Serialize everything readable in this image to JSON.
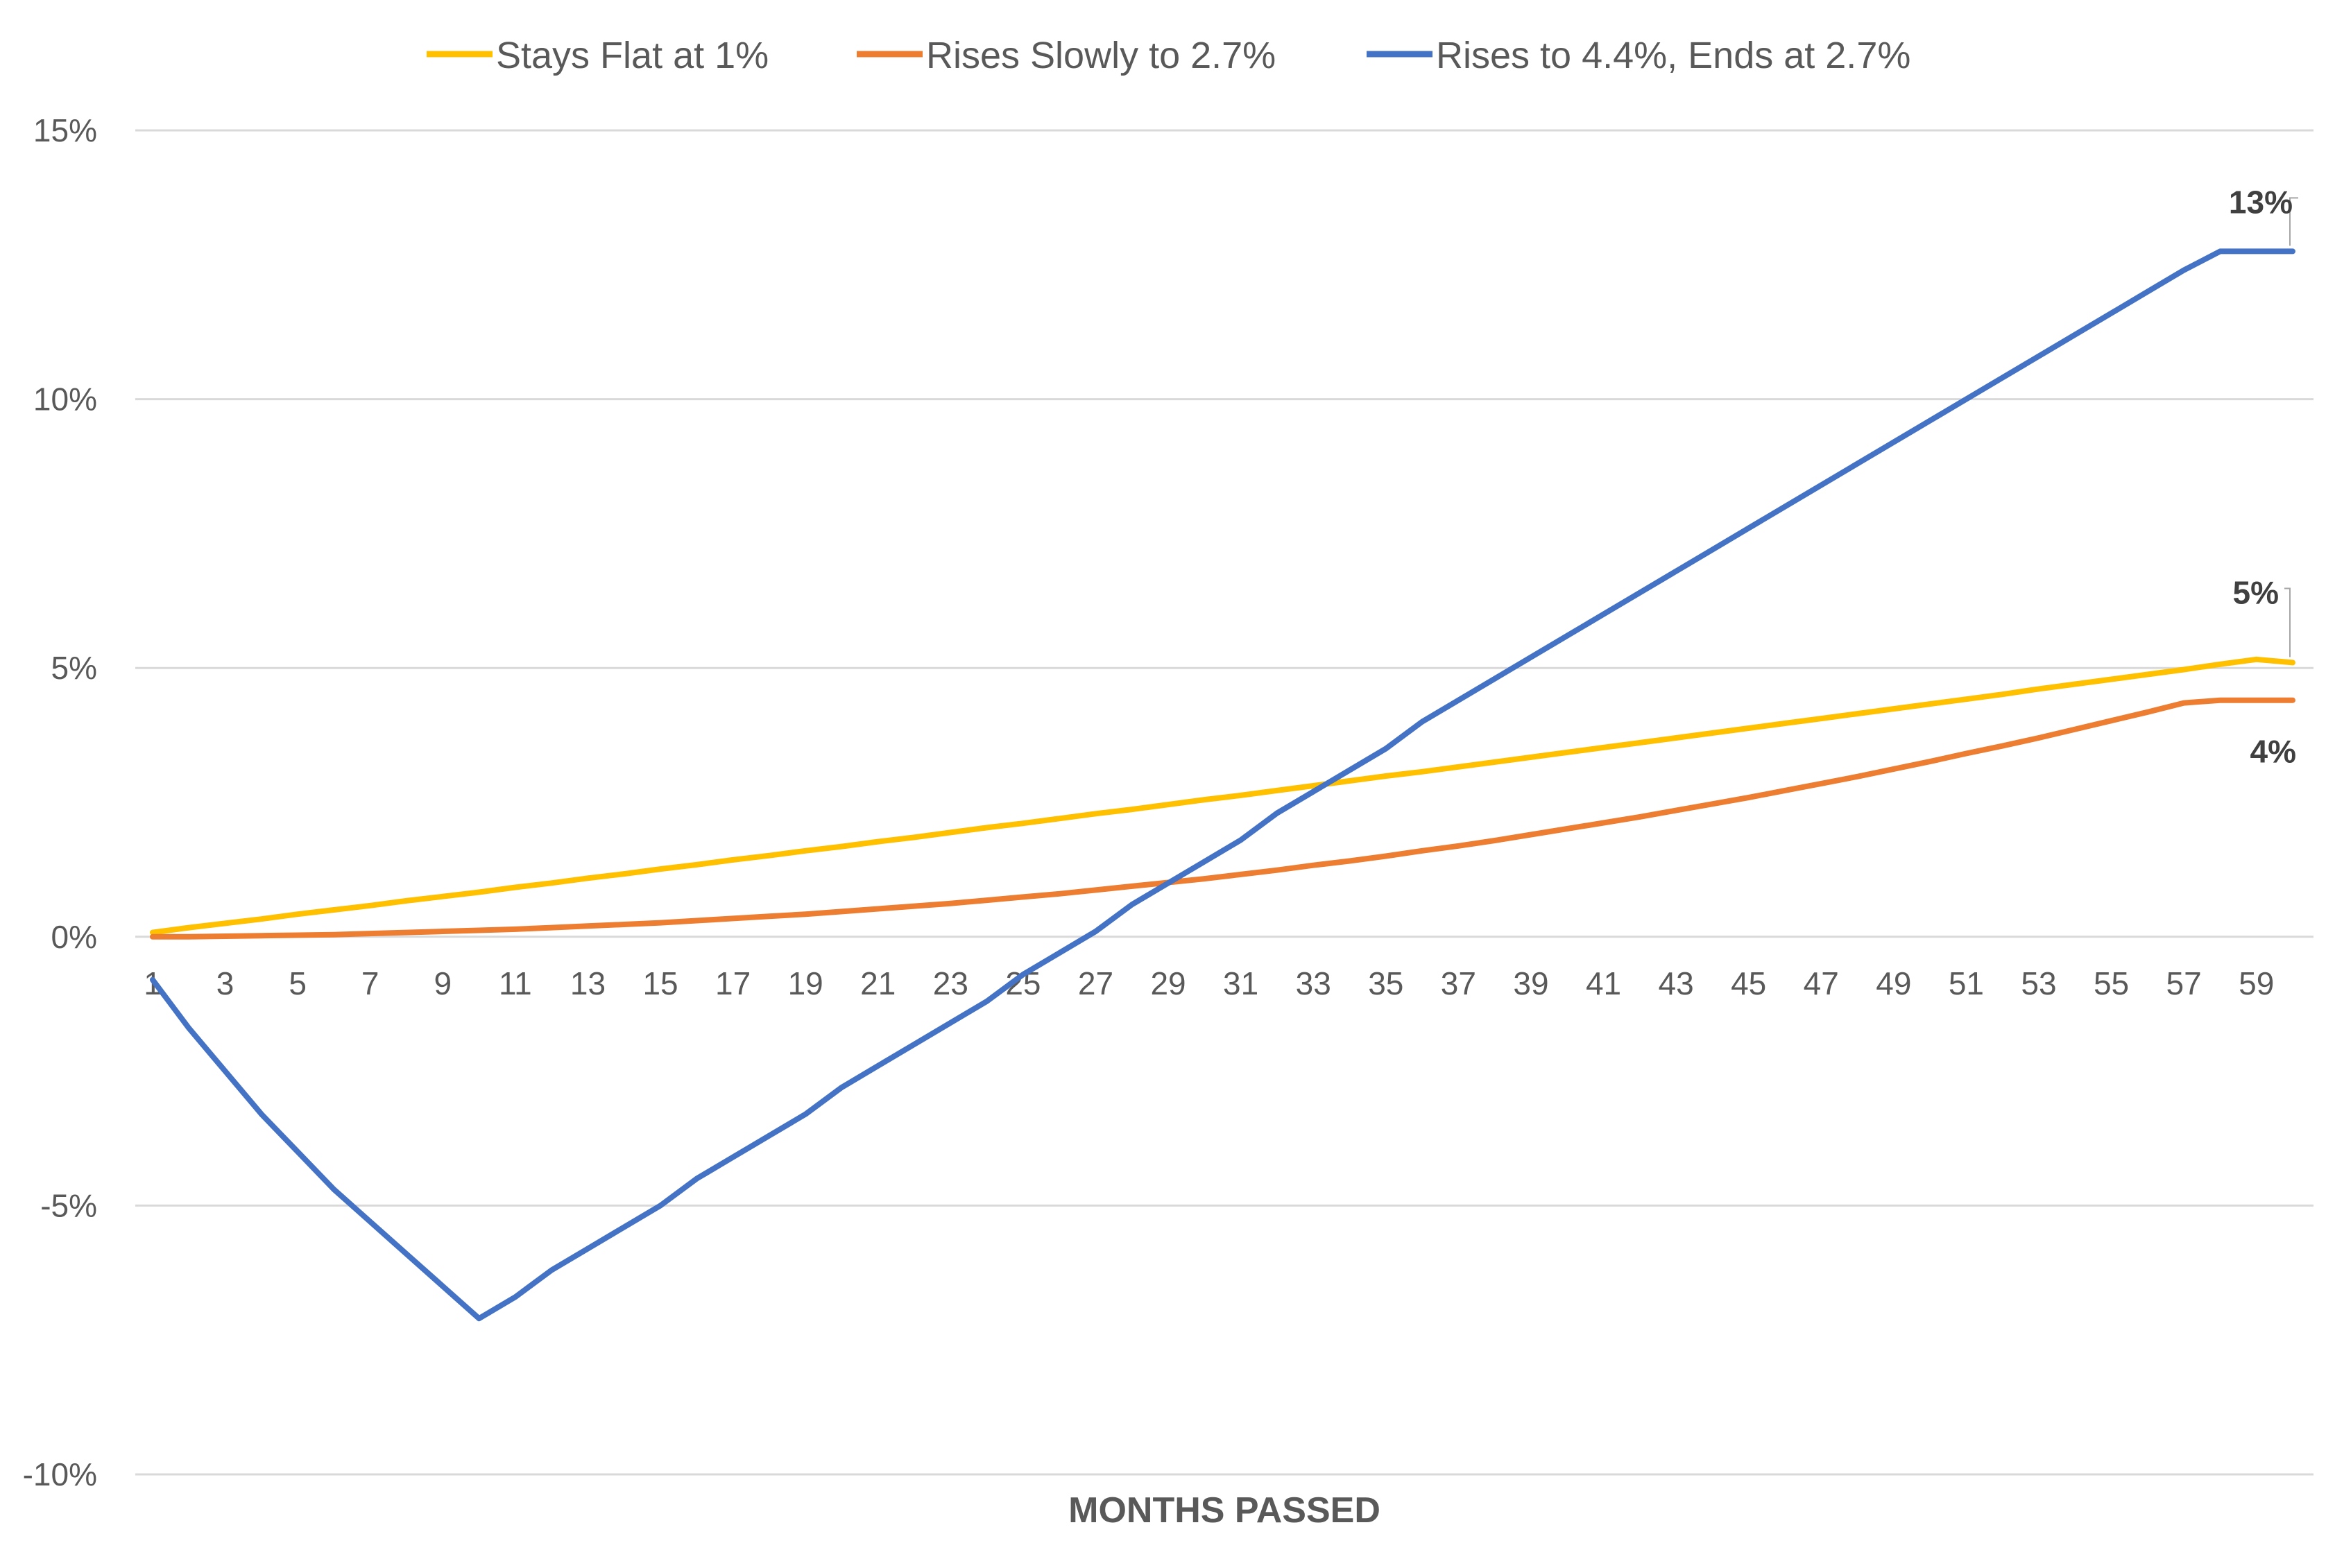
{
  "chart_data": {
    "type": "line",
    "title": "",
    "xlabel": "MONTHS PASSED",
    "ylabel": "",
    "x": [
      1,
      2,
      3,
      4,
      5,
      6,
      7,
      8,
      9,
      10,
      11,
      12,
      13,
      14,
      15,
      16,
      17,
      18,
      19,
      20,
      21,
      22,
      23,
      24,
      25,
      26,
      27,
      28,
      29,
      30,
      31,
      32,
      33,
      34,
      35,
      36,
      37,
      38,
      39,
      40,
      41,
      42,
      43,
      44,
      45,
      46,
      47,
      48,
      49,
      50,
      51,
      52,
      53,
      54,
      55,
      56,
      57,
      58,
      59,
      60
    ],
    "x_tick_labels": [
      "1",
      "3",
      "5",
      "7",
      "9",
      "11",
      "13",
      "15",
      "17",
      "19",
      "21",
      "23",
      "25",
      "27",
      "29",
      "31",
      "33",
      "35",
      "37",
      "39",
      "41",
      "43",
      "45",
      "47",
      "49",
      "51",
      "53",
      "55",
      "57",
      "59"
    ],
    "y_tick_labels": [
      "15%",
      "10%",
      "5%",
      "0%",
      "-5%",
      "-10%"
    ],
    "ylim": [
      -10,
      15
    ],
    "y_unit": "%",
    "grid": "horizontal",
    "legend_position": "top",
    "series": [
      {
        "name": "Stays Flat at 1%",
        "color": "#FFC000",
        "values": [
          0.08,
          0.17,
          0.25,
          0.33,
          0.42,
          0.5,
          0.58,
          0.67,
          0.75,
          0.83,
          0.92,
          1.0,
          1.09,
          1.17,
          1.26,
          1.34,
          1.43,
          1.51,
          1.6,
          1.68,
          1.77,
          1.85,
          1.94,
          2.03,
          2.11,
          2.2,
          2.29,
          2.37,
          2.46,
          2.55,
          2.63,
          2.72,
          2.81,
          2.9,
          2.99,
          3.07,
          3.16,
          3.25,
          3.34,
          3.43,
          3.52,
          3.61,
          3.7,
          3.79,
          3.88,
          3.97,
          4.06,
          4.15,
          4.24,
          4.33,
          4.42,
          4.51,
          4.61,
          4.7,
          4.79,
          4.88,
          4.97,
          5.07,
          5.16,
          5.1
        ],
        "end_label": "5%"
      },
      {
        "name": "Rises Slowly to 2.7%",
        "color": "#ED7D31",
        "values": [
          0.0,
          0.0,
          0.01,
          0.02,
          0.03,
          0.04,
          0.06,
          0.08,
          0.1,
          0.12,
          0.14,
          0.17,
          0.2,
          0.23,
          0.26,
          0.3,
          0.34,
          0.38,
          0.42,
          0.47,
          0.52,
          0.57,
          0.62,
          0.68,
          0.74,
          0.8,
          0.87,
          0.94,
          1.01,
          1.08,
          1.16,
          1.24,
          1.33,
          1.41,
          1.5,
          1.6,
          1.69,
          1.79,
          1.9,
          2.01,
          2.12,
          2.23,
          2.35,
          2.47,
          2.59,
          2.72,
          2.85,
          2.98,
          3.12,
          3.26,
          3.41,
          3.55,
          3.7,
          3.86,
          4.02,
          4.18,
          4.35,
          4.4,
          4.4,
          4.4
        ],
        "end_label": "4%"
      },
      {
        "name": "Rises to 4.4%, Ends at 2.7%",
        "color": "#4472C4",
        "values": [
          -0.8,
          -1.7,
          -2.5,
          -3.3,
          -4.0,
          -4.7,
          -5.3,
          -5.9,
          -6.5,
          -7.1,
          -6.7,
          -6.2,
          -5.8,
          -5.4,
          -5.0,
          -4.5,
          -4.1,
          -3.7,
          -3.3,
          -2.8,
          -2.4,
          -2.0,
          -1.6,
          -1.2,
          -0.7,
          -0.3,
          0.1,
          0.6,
          1.0,
          1.4,
          1.8,
          2.3,
          2.7,
          3.1,
          3.5,
          4.0,
          4.4,
          4.8,
          5.2,
          5.6,
          6.0,
          6.4,
          6.8,
          7.2,
          7.6,
          8.0,
          8.4,
          8.8,
          9.2,
          9.6,
          10.0,
          10.4,
          10.8,
          11.2,
          11.6,
          12.0,
          12.4,
          12.75,
          12.75,
          12.75
        ],
        "end_label": "13%"
      }
    ]
  }
}
